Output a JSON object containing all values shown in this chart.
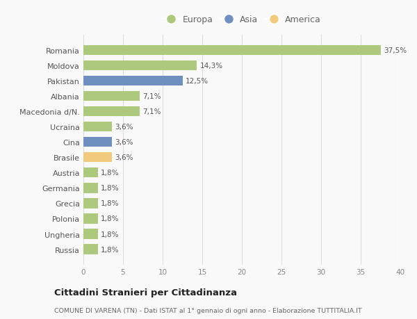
{
  "categories": [
    "Romania",
    "Moldova",
    "Pakistan",
    "Albania",
    "Macedonia d/N.",
    "Ucraina",
    "Cina",
    "Brasile",
    "Austria",
    "Germania",
    "Grecia",
    "Polonia",
    "Ungheria",
    "Russia"
  ],
  "values": [
    37.5,
    14.3,
    12.5,
    7.1,
    7.1,
    3.6,
    3.6,
    3.6,
    1.8,
    1.8,
    1.8,
    1.8,
    1.8,
    1.8
  ],
  "labels": [
    "37,5%",
    "14,3%",
    "12,5%",
    "7,1%",
    "7,1%",
    "3,6%",
    "3,6%",
    "3,6%",
    "1,8%",
    "1,8%",
    "1,8%",
    "1,8%",
    "1,8%",
    "1,8%"
  ],
  "continents": [
    "Europa",
    "Europa",
    "Asia",
    "Europa",
    "Europa",
    "Europa",
    "Asia",
    "America",
    "Europa",
    "Europa",
    "Europa",
    "Europa",
    "Europa",
    "Europa"
  ],
  "colors": {
    "Europa": "#adc97e",
    "Asia": "#6e8fc0",
    "America": "#f2ca7e"
  },
  "legend_entries": [
    "Europa",
    "Asia",
    "America"
  ],
  "legend_colors": [
    "#adc97e",
    "#6e8fc0",
    "#f2ca7e"
  ],
  "xlim": [
    0,
    40
  ],
  "xticks": [
    0,
    5,
    10,
    15,
    20,
    25,
    30,
    35,
    40
  ],
  "title": "Cittadini Stranieri per Cittadinanza",
  "subtitle": "COMUNE DI VARENA (TN) - Dati ISTAT al 1° gennaio di ogni anno - Elaborazione TUTTITALIA.IT",
  "bg_color": "#f9f9f9",
  "grid_color": "#dddddd"
}
